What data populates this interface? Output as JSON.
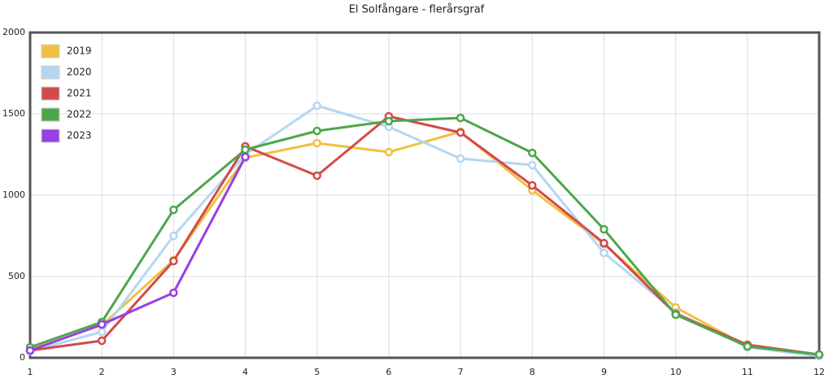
{
  "chart_data": {
    "type": "line",
    "title": "El Solfångare - flerårsgraf",
    "x": [
      1,
      2,
      3,
      4,
      5,
      6,
      7,
      8,
      9,
      10,
      11,
      12
    ],
    "series": [
      {
        "name": "2019",
        "color": "#f2c040",
        "values": [
          50,
          200,
          600,
          1230,
          1320,
          1265,
          1390,
          1030,
          700,
          310,
          70,
          15
        ]
      },
      {
        "name": "2020",
        "color": "#b3d7f3",
        "values": [
          40,
          160,
          750,
          1250,
          1550,
          1420,
          1225,
          1185,
          645,
          280,
          65,
          10
        ]
      },
      {
        "name": "2021",
        "color": "#d24a4a",
        "values": [
          45,
          105,
          595,
          1300,
          1120,
          1485,
          1385,
          1060,
          705,
          270,
          80,
          20
        ]
      },
      {
        "name": "2022",
        "color": "#4ca64c",
        "values": [
          65,
          220,
          910,
          1280,
          1395,
          1455,
          1475,
          1260,
          790,
          265,
          70,
          20
        ]
      },
      {
        "name": "2023",
        "color": "#9640e6",
        "values": [
          45,
          205,
          400,
          1235,
          null,
          null,
          null,
          null,
          null,
          null,
          null,
          null
        ]
      }
    ],
    "xlim": [
      1,
      12
    ],
    "xticks": [
      1,
      2,
      3,
      4,
      5,
      6,
      7,
      8,
      9,
      10,
      11,
      12
    ],
    "ylim": [
      0,
      2000
    ],
    "yticks": [
      0,
      500,
      1000,
      1500,
      2000
    ],
    "grid": true,
    "legend": "top-left"
  }
}
